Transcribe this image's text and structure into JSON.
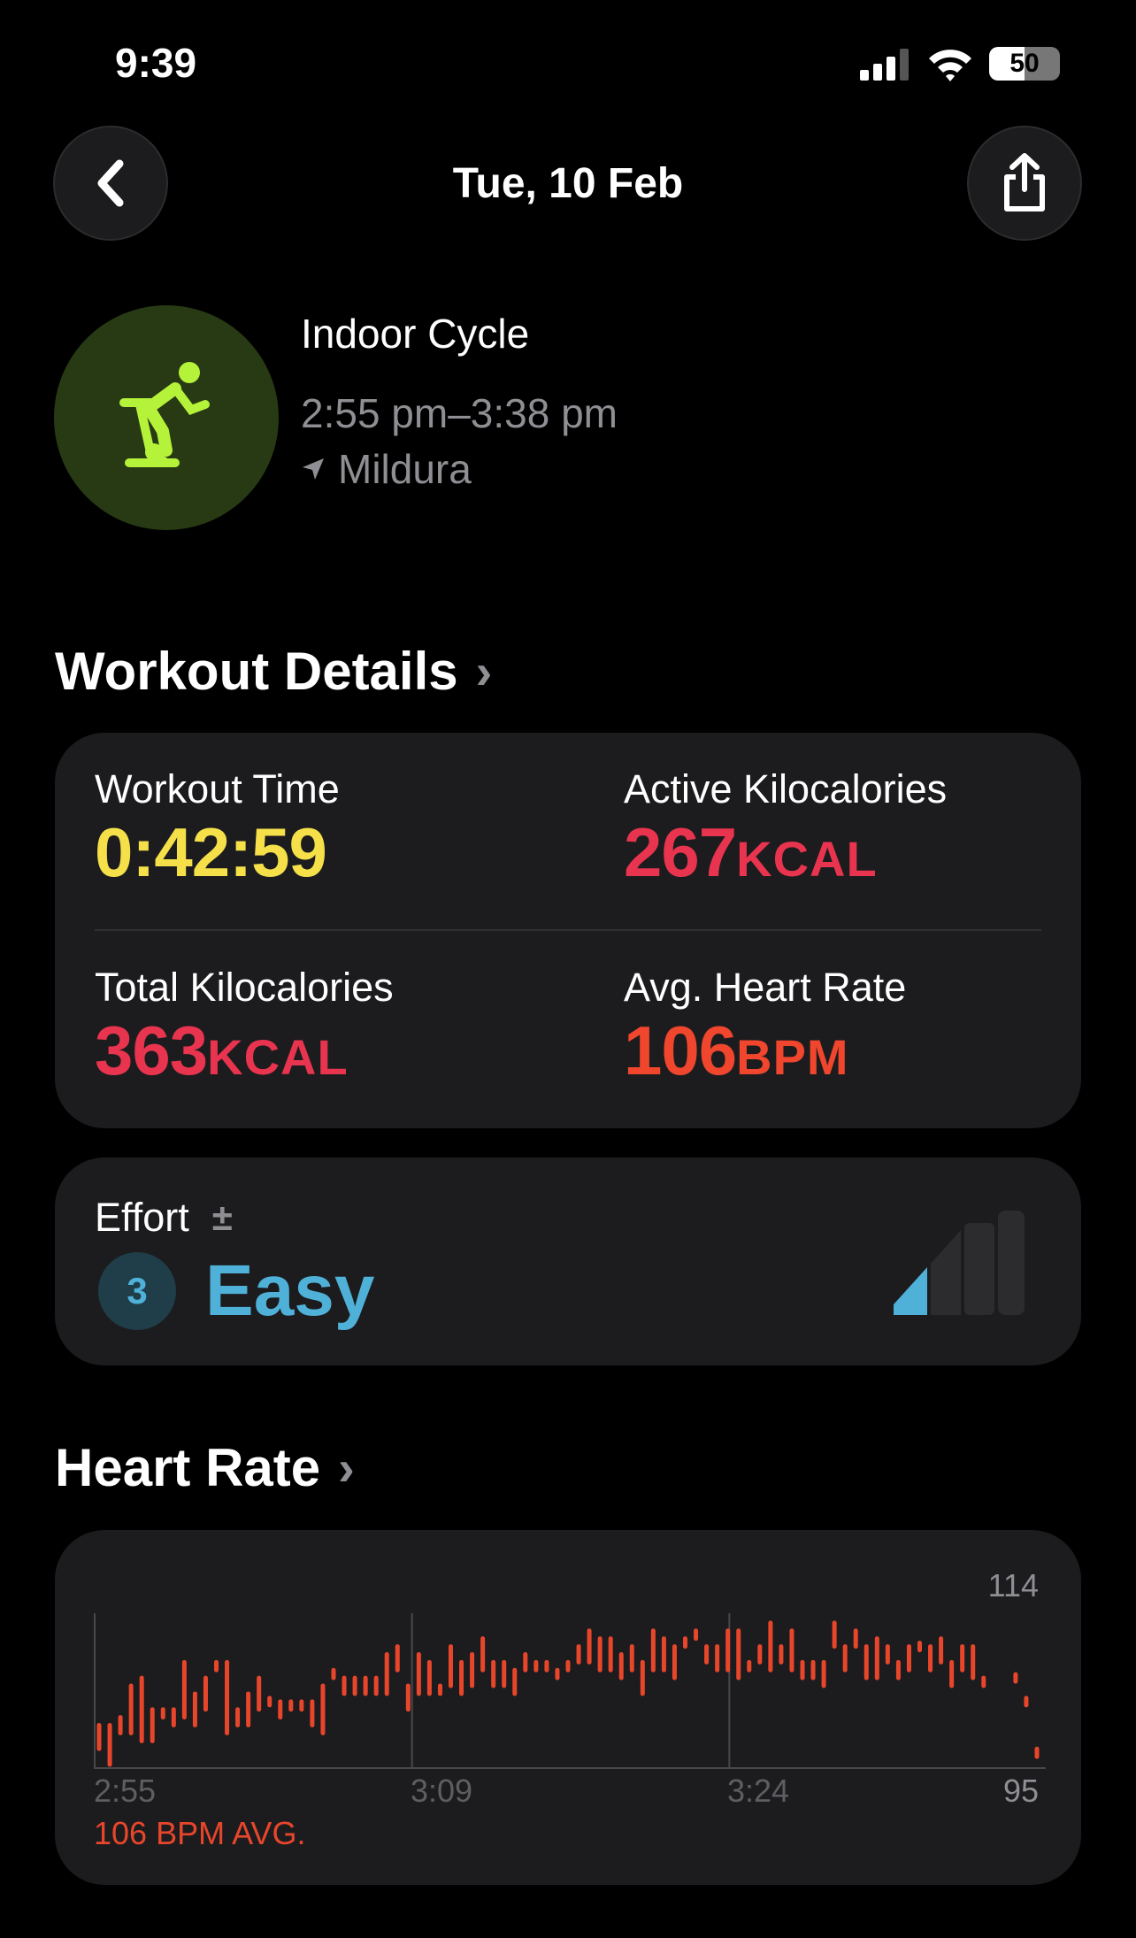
{
  "status": {
    "time": "9:39",
    "battery": "50"
  },
  "nav": {
    "title": "Tue, 10 Feb"
  },
  "workout": {
    "name": "Indoor Cycle",
    "time_range": "2:55 pm–3:38 pm",
    "location": "Mildura",
    "icon": "indoor-cycle-icon",
    "accent": "#b5f23a"
  },
  "details": {
    "heading": "Workout Details",
    "workout_time": {
      "label": "Workout Time",
      "value": "0:42:59",
      "color": "#f5e04a"
    },
    "active_kcal": {
      "label": "Active Kilocalories",
      "value": "267",
      "unit": "KCAL",
      "color": "#e8344e"
    },
    "total_kcal": {
      "label": "Total Kilocalories",
      "value": "363",
      "unit": "KCAL",
      "color": "#e8344e"
    },
    "avg_hr": {
      "label": "Avg. Heart Rate",
      "value": "106",
      "unit": "BPM",
      "color": "#f0462d"
    }
  },
  "effort": {
    "label": "Effort",
    "adjust_symbol": "±",
    "level": "3",
    "text": "Easy",
    "color": "#4fb0d8",
    "level_fraction": 0.25
  },
  "heart_rate": {
    "heading": "Heart Rate",
    "avg_label": "106 BPM AVG.",
    "chart_data": {
      "type": "range-bar",
      "ylim": [
        95,
        114
      ],
      "y_max_label": "114",
      "y_min_label": "95",
      "x_ticks": [
        "2:55",
        "3:09",
        "3:24"
      ],
      "xlim": [
        "2:55",
        "3:38"
      ],
      "color": "#e8462b",
      "ranges": [
        [
          97,
          100
        ],
        [
          95,
          100
        ],
        [
          99,
          101
        ],
        [
          99,
          105
        ],
        [
          98,
          106
        ],
        [
          98,
          102
        ],
        [
          101,
          102
        ],
        [
          100,
          102
        ],
        [
          101,
          108
        ],
        [
          100,
          104
        ],
        [
          102,
          106
        ],
        [
          107,
          108
        ],
        [
          99,
          108
        ],
        [
          100,
          102
        ],
        [
          100,
          104
        ],
        [
          102,
          106
        ],
        [
          103,
          103
        ],
        [
          101,
          103
        ],
        [
          102,
          103
        ],
        [
          102,
          103
        ],
        [
          100,
          103
        ],
        [
          99,
          105
        ],
        [
          106,
          107
        ],
        [
          104,
          106
        ],
        [
          104,
          106
        ],
        [
          104,
          106
        ],
        [
          104,
          106
        ],
        [
          104,
          109
        ],
        [
          107,
          110
        ],
        [
          102,
          105
        ],
        [
          104,
          109
        ],
        [
          104,
          108
        ],
        [
          104,
          105
        ],
        [
          105,
          110
        ],
        [
          104,
          108
        ],
        [
          105,
          109
        ],
        [
          107,
          111
        ],
        [
          105,
          108
        ],
        [
          105,
          108
        ],
        [
          104,
          107
        ],
        [
          107,
          109
        ],
        [
          107,
          108
        ],
        [
          107,
          108
        ],
        [
          106,
          107
        ],
        [
          107,
          108
        ],
        [
          108,
          110
        ],
        [
          108,
          112
        ],
        [
          107,
          111
        ],
        [
          107,
          111
        ],
        [
          106,
          109
        ],
        [
          107,
          110
        ],
        [
          104,
          108
        ],
        [
          107,
          112
        ],
        [
          107,
          111
        ],
        [
          106,
          110
        ],
        [
          110,
          111
        ],
        [
          111,
          112
        ],
        [
          108,
          110
        ],
        [
          107,
          110
        ],
        [
          107,
          112
        ],
        [
          106,
          112
        ],
        [
          107,
          108
        ],
        [
          108,
          110
        ],
        [
          107,
          113
        ],
        [
          108,
          110
        ],
        [
          107,
          112
        ],
        [
          106,
          108
        ],
        [
          106,
          108
        ],
        [
          105,
          108
        ],
        [
          110,
          113
        ],
        [
          107,
          110
        ],
        [
          110,
          112
        ],
        [
          106,
          110
        ],
        [
          106,
          111
        ],
        [
          108,
          110
        ],
        [
          106,
          108
        ],
        [
          107,
          110
        ],
        [
          110,
          110
        ],
        [
          107,
          110
        ],
        [
          108,
          111
        ],
        [
          105,
          108
        ],
        [
          107,
          110
        ],
        [
          106,
          110
        ],
        [
          105,
          106
        ],
        null,
        null,
        [
          106,
          106
        ],
        [
          103,
          103
        ],
        [
          96,
          97
        ]
      ]
    }
  }
}
